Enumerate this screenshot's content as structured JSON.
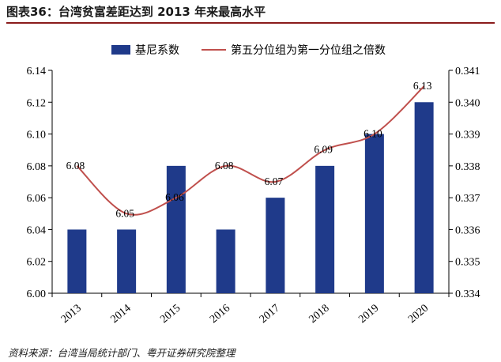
{
  "header": {
    "title": "图表36：台湾贫富差距达到 2013 年来最高水平"
  },
  "footer": {
    "source": "资料来源：台湾当局统计部门、粤开证券研究院整理"
  },
  "colors": {
    "bar": "#1f3a8a",
    "line": "#c0504d",
    "rule": "#8a1c1c"
  },
  "chart_data": {
    "type": "bar",
    "categories": [
      "2013",
      "2014",
      "2015",
      "2016",
      "2017",
      "2018",
      "2019",
      "2020"
    ],
    "series": [
      {
        "name": "基尼系数",
        "type": "bar",
        "axis": "right",
        "values": [
          0.336,
          0.336,
          0.338,
          0.336,
          0.337,
          0.338,
          0.339,
          0.34
        ]
      },
      {
        "name": "第五分位组为第一分位组之倍数",
        "type": "line",
        "axis": "left",
        "values": [
          6.08,
          6.05,
          6.06,
          6.08,
          6.07,
          6.09,
          6.1,
          6.13
        ],
        "labels": [
          "6.08",
          "6.05",
          "6.06",
          "6.08",
          "6.07",
          "6.09",
          "6.10",
          "6.13"
        ]
      }
    ],
    "left_axis": {
      "ylim": [
        6.0,
        6.14
      ],
      "ticks": [
        "6.00",
        "6.02",
        "6.04",
        "6.06",
        "6.08",
        "6.10",
        "6.12",
        "6.14"
      ]
    },
    "right_axis": {
      "ylim": [
        0.334,
        0.341
      ],
      "ticks": [
        "0.334",
        "0.335",
        "0.336",
        "0.337",
        "0.338",
        "0.339",
        "0.340",
        "0.341"
      ]
    },
    "legend": "top-center",
    "grid": false
  }
}
